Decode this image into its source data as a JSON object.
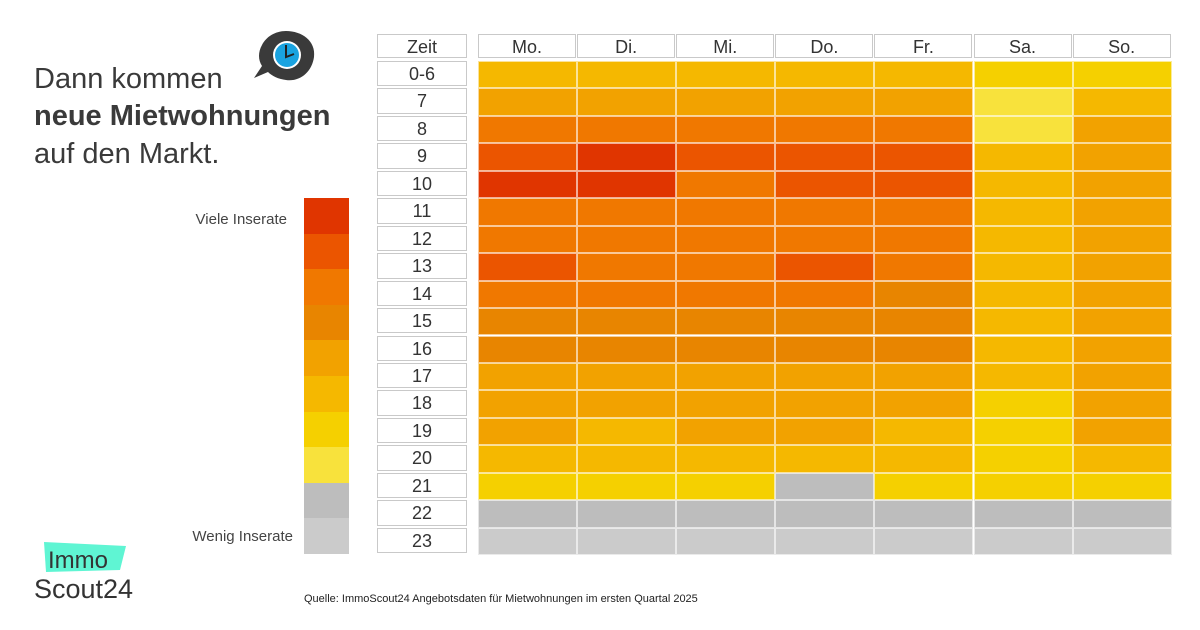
{
  "title": {
    "line1": "Dann kommen",
    "line2": "neue Mietwohnungen",
    "line3": "auf den Markt."
  },
  "icon": "clock-speech-bubble-icon",
  "legend": {
    "high_label": "Viele Inserate",
    "low_label": "Wenig Inserate",
    "colors": [
      "#e03500",
      "#eb5500",
      "#f07800",
      "#e88500",
      "#f2a200",
      "#f5b800",
      "#f5d000",
      "#f8e23c",
      "#bdbdbd",
      "#cbcbcb"
    ]
  },
  "chart_data": {
    "type": "heatmap",
    "row_header": "Zeit",
    "columns": [
      "Mo.",
      "Di.",
      "Mi.",
      "Do.",
      "Fr.",
      "Sa.",
      "So."
    ],
    "rows": [
      "0-6",
      "7",
      "8",
      "9",
      "10",
      "11",
      "12",
      "13",
      "14",
      "15",
      "16",
      "17",
      "18",
      "19",
      "20",
      "21",
      "22",
      "23"
    ],
    "scale": "1 = Wenig Inserate … 10 = Viele Inserate",
    "values": [
      [
        5,
        5,
        5,
        5,
        5,
        4,
        4
      ],
      [
        6,
        6,
        6,
        6,
        6,
        3,
        5
      ],
      [
        8,
        8,
        8,
        8,
        8,
        3,
        6
      ],
      [
        9,
        10,
        9,
        9,
        9,
        5,
        6
      ],
      [
        10,
        10,
        8,
        9,
        9,
        5,
        6
      ],
      [
        8,
        8,
        8,
        8,
        8,
        5,
        6
      ],
      [
        8,
        8,
        8,
        8,
        8,
        5,
        6
      ],
      [
        9,
        8,
        8,
        9,
        8,
        5,
        6
      ],
      [
        8,
        8,
        8,
        8,
        7,
        5,
        6
      ],
      [
        7,
        7,
        7,
        7,
        7,
        5,
        6
      ],
      [
        7,
        7,
        7,
        7,
        7,
        5,
        6
      ],
      [
        6,
        6,
        6,
        6,
        6,
        5,
        6
      ],
      [
        6,
        6,
        6,
        6,
        6,
        4,
        6
      ],
      [
        6,
        5,
        6,
        6,
        5,
        4,
        6
      ],
      [
        5,
        5,
        5,
        5,
        5,
        4,
        5
      ],
      [
        4,
        4,
        4,
        2,
        4,
        4,
        4
      ],
      [
        2,
        2,
        2,
        2,
        2,
        2,
        2
      ],
      [
        1,
        1,
        1,
        1,
        1,
        1,
        1
      ]
    ]
  },
  "logo": {
    "line1": "Immo",
    "line2": "Scout24"
  },
  "source": "Quelle: ImmoScout24 Angebotsdaten für Mietwohnungen im ersten Quartal 2025"
}
